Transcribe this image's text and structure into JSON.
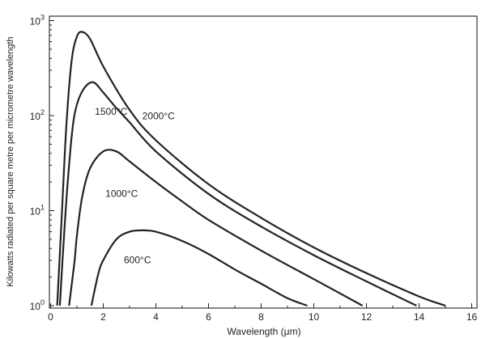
{
  "chart_data": {
    "type": "line",
    "title": "",
    "xlabel": "Wavelength (μm)",
    "ylabel": "Kilowatts radiated per square metre per micrometre wavelength",
    "xlim": [
      0,
      17
    ],
    "ylim": [
      1,
      1000
    ],
    "yscale": "log",
    "grid": false,
    "x_ticks": [
      0,
      2,
      4,
      6,
      8,
      10,
      12,
      14,
      16
    ],
    "y_ticks": [
      {
        "value": 1,
        "base": "10",
        "exp": "0"
      },
      {
        "value": 10,
        "base": "10",
        "exp": "1"
      },
      {
        "value": 100,
        "base": "10",
        "exp": "2"
      },
      {
        "value": 1000,
        "base": "10",
        "exp": "3"
      }
    ],
    "series": [
      {
        "name": "2000°C",
        "x": [
          0.25,
          0.4,
          0.6,
          0.8,
          1.0,
          1.2,
          1.5,
          2.0,
          3.0,
          4.0,
          6.0,
          8.0,
          10.0,
          12.0,
          14.0,
          15.0
        ],
        "y": [
          1,
          6.5,
          80,
          380,
          680,
          760,
          640,
          330,
          115,
          55,
          19,
          8.4,
          4.1,
          2.2,
          1.25,
          1
        ]
      },
      {
        "name": "1500°C",
        "x": [
          0.35,
          0.5,
          0.7,
          0.9,
          1.2,
          1.6,
          2.0,
          2.5,
          3.0,
          4.0,
          6.0,
          8.0,
          10.0,
          12.0,
          13.9
        ],
        "y": [
          1,
          5,
          30,
          100,
          180,
          225,
          175,
          120,
          85,
          42,
          15,
          6.8,
          3.4,
          1.8,
          1
        ]
      },
      {
        "name": "1000°C",
        "x": [
          0.7,
          0.9,
          1.0,
          1.2,
          1.5,
          2.0,
          2.5,
          3.0,
          4.0,
          5.0,
          6.0,
          8.0,
          10.0,
          11.85
        ],
        "y": [
          1,
          2.8,
          5.5,
          14,
          28,
          42,
          42,
          33,
          20,
          12.5,
          8,
          3.8,
          1.9,
          1
        ]
      },
      {
        "name": "600°C",
        "x": [
          1.55,
          1.8,
          2.0,
          2.5,
          3.0,
          3.5,
          4.0,
          5.0,
          6.0,
          7.0,
          8.0,
          9.0,
          9.75
        ],
        "y": [
          1,
          2.1,
          3.0,
          5.0,
          6.0,
          6.2,
          6.0,
          4.8,
          3.5,
          2.4,
          1.7,
          1.2,
          1
        ]
      }
    ],
    "annotations": [
      {
        "text": "2000°C",
        "series": "2000°C"
      },
      {
        "text": "1500°C",
        "series": "1500°C"
      },
      {
        "text": "1000°C",
        "series": "1000°C"
      },
      {
        "text": "600°C",
        "series": "600°C"
      }
    ]
  }
}
